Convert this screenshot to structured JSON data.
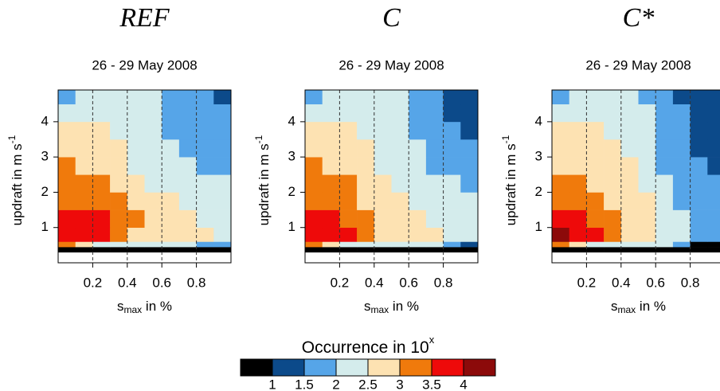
{
  "chart_data": [
    {
      "type": "heatmap",
      "title": "REF",
      "subtitle": "26 - 29 May 2008",
      "xlabel": "s",
      "xlabel_sub": "max",
      "xlabel_rest": " in %",
      "ylabel": "updraft in m s",
      "ylabel_sup": "-1",
      "xlim": [
        0,
        1
      ],
      "ylim": [
        0,
        4.9
      ],
      "xticks": [
        0.2,
        0.4,
        0.6,
        0.8
      ],
      "yticks": [
        1,
        2,
        3,
        4
      ],
      "grid": true,
      "xbins": [
        0,
        0.1,
        0.2,
        0.3,
        0.4,
        0.5,
        0.6,
        0.7,
        0.8,
        0.9,
        1.0
      ],
      "ybins": [
        0,
        0.3,
        0.45,
        0.6,
        1,
        1.5,
        2,
        2.5,
        3,
        3.5,
        4,
        4.5,
        4.9
      ],
      "z": [
        [
          null,
          null,
          null,
          null,
          null,
          null,
          null,
          null,
          null,
          null
        ],
        [
          0.5,
          0.5,
          0.5,
          0.5,
          0.5,
          0.5,
          0.5,
          0.5,
          0.5,
          0.5
        ],
        [
          3.2,
          2.7,
          2.2,
          2.2,
          2.2,
          2.2,
          2.2,
          2.2,
          1.7,
          1.7
        ],
        [
          3.7,
          3.7,
          3.7,
          3.2,
          2.7,
          2.7,
          2.7,
          2.7,
          2.7,
          2.2
        ],
        [
          3.7,
          3.7,
          3.7,
          3.2,
          3.2,
          2.7,
          2.7,
          2.7,
          2.2,
          2.2
        ],
        [
          3.2,
          3.2,
          3.2,
          3.2,
          2.7,
          2.7,
          2.7,
          2.2,
          2.2,
          2.2
        ],
        [
          3.2,
          3.2,
          3.2,
          2.7,
          2.7,
          2.2,
          2.2,
          2.2,
          2.2,
          2.2
        ],
        [
          3.2,
          2.7,
          2.7,
          2.7,
          2.2,
          2.2,
          2.2,
          2.2,
          1.7,
          1.7
        ],
        [
          2.7,
          2.7,
          2.7,
          2.7,
          2.2,
          2.2,
          2.2,
          1.7,
          1.7,
          1.7
        ],
        [
          2.7,
          2.7,
          2.7,
          2.2,
          2.2,
          2.2,
          1.7,
          1.7,
          1.7,
          1.7
        ],
        [
          2.2,
          2.2,
          2.2,
          2.2,
          2.2,
          2.2,
          1.7,
          1.7,
          1.7,
          1.7
        ],
        [
          1.7,
          2.2,
          2.2,
          2.2,
          2.2,
          2.2,
          1.7,
          1.7,
          1.7,
          1.2
        ]
      ]
    },
    {
      "type": "heatmap",
      "title": "C",
      "subtitle": "26 - 29 May 2008",
      "xlabel": "s",
      "xlabel_sub": "max",
      "xlabel_rest": " in %",
      "ylabel": "updraft in m s",
      "ylabel_sup": "-1",
      "xlim": [
        0,
        1
      ],
      "ylim": [
        0,
        4.9
      ],
      "xticks": [
        0.2,
        0.4,
        0.6,
        0.8
      ],
      "yticks": [
        1,
        2,
        3,
        4
      ],
      "grid": true,
      "xbins": [
        0,
        0.1,
        0.2,
        0.3,
        0.4,
        0.5,
        0.6,
        0.7,
        0.8,
        0.9,
        1.0
      ],
      "ybins": [
        0,
        0.3,
        0.45,
        0.6,
        1,
        1.5,
        2,
        2.5,
        3,
        3.5,
        4,
        4.5,
        4.9
      ],
      "z": [
        [
          null,
          null,
          null,
          null,
          null,
          null,
          null,
          null,
          null,
          null
        ],
        [
          0.5,
          0.5,
          0.5,
          0.5,
          0.5,
          0.5,
          0.5,
          0.5,
          0.5,
          0.5
        ],
        [
          3.2,
          2.7,
          2.2,
          2.2,
          2.2,
          2.2,
          2.2,
          2.2,
          1.7,
          1.2
        ],
        [
          3.7,
          3.7,
          3.7,
          3.2,
          2.7,
          2.7,
          2.7,
          2.7,
          2.2,
          2.2
        ],
        [
          3.7,
          3.7,
          3.2,
          3.2,
          2.7,
          2.7,
          2.7,
          2.2,
          2.2,
          2.2
        ],
        [
          3.2,
          3.2,
          3.2,
          2.7,
          2.7,
          2.7,
          2.2,
          2.2,
          2.2,
          2.2
        ],
        [
          3.2,
          3.2,
          3.2,
          2.7,
          2.7,
          2.2,
          2.2,
          2.2,
          2.2,
          1.7
        ],
        [
          3.2,
          2.7,
          2.7,
          2.7,
          2.2,
          2.2,
          2.2,
          1.7,
          1.7,
          1.7
        ],
        [
          2.7,
          2.7,
          2.7,
          2.7,
          2.2,
          2.2,
          2.2,
          1.7,
          1.7,
          1.7
        ],
        [
          2.7,
          2.7,
          2.7,
          2.2,
          2.2,
          2.2,
          1.7,
          1.7,
          1.7,
          1.2
        ],
        [
          2.2,
          2.2,
          2.2,
          2.2,
          2.2,
          2.2,
          1.7,
          1.7,
          1.2,
          1.2
        ],
        [
          1.7,
          2.2,
          2.2,
          2.2,
          2.2,
          2.2,
          1.7,
          1.7,
          1.2,
          1.2
        ]
      ]
    },
    {
      "type": "heatmap",
      "title": "C*",
      "subtitle": "26 - 29 May 2008",
      "xlabel": "s",
      "xlabel_sub": "max",
      "xlabel_rest": " in %",
      "ylabel": "updraft in m s",
      "ylabel_sup": "-1",
      "xlim": [
        0,
        1
      ],
      "ylim": [
        0,
        4.9
      ],
      "xticks": [
        0.2,
        0.4,
        0.6,
        0.8
      ],
      "yticks": [
        1,
        2,
        3,
        4
      ],
      "grid": true,
      "xbins": [
        0,
        0.1,
        0.2,
        0.3,
        0.4,
        0.5,
        0.6,
        0.7,
        0.8,
        0.9,
        1.0
      ],
      "ybins": [
        0,
        0.3,
        0.45,
        0.6,
        1,
        1.5,
        2,
        2.5,
        3,
        3.5,
        4,
        4.5,
        4.9
      ],
      "z": [
        [
          null,
          null,
          null,
          null,
          null,
          null,
          null,
          null,
          null,
          null
        ],
        [
          0.5,
          0.5,
          0.5,
          0.5,
          0.5,
          0.5,
          0.5,
          0.5,
          0.5,
          0.5
        ],
        [
          3.2,
          2.7,
          2.2,
          2.2,
          2.2,
          2.2,
          2.2,
          1.7,
          0.5,
          0.5
        ],
        [
          4.2,
          3.7,
          3.7,
          3.2,
          2.7,
          2.7,
          2.2,
          2.2,
          1.7,
          1.7
        ],
        [
          3.7,
          3.7,
          3.2,
          3.2,
          2.7,
          2.7,
          2.2,
          2.2,
          1.7,
          1.7
        ],
        [
          3.2,
          3.2,
          3.2,
          2.7,
          2.7,
          2.7,
          2.2,
          1.7,
          1.7,
          1.7
        ],
        [
          3.2,
          3.2,
          2.7,
          2.7,
          2.7,
          2.2,
          2.2,
          1.7,
          1.7,
          1.7
        ],
        [
          2.7,
          2.7,
          2.7,
          2.7,
          2.7,
          2.2,
          1.7,
          1.7,
          1.7,
          1.2
        ],
        [
          2.7,
          2.7,
          2.7,
          2.7,
          2.2,
          2.2,
          1.7,
          1.7,
          1.2,
          1.2
        ],
        [
          2.7,
          2.7,
          2.7,
          2.2,
          2.2,
          2.2,
          1.7,
          1.7,
          1.2,
          1.2
        ],
        [
          2.2,
          2.2,
          2.2,
          2.2,
          2.2,
          2.2,
          1.7,
          1.7,
          1.2,
          1.2
        ],
        [
          1.7,
          2.2,
          2.2,
          2.2,
          2.2,
          1.7,
          1.7,
          1.2,
          1.2,
          1.2
        ]
      ]
    }
  ],
  "colorbar": {
    "title": "Occurrence in 10",
    "title_sup": "x",
    "colors": [
      "#000000",
      "#0c4a8a",
      "#56a5e8",
      "#d4ecec",
      "#fde2b2",
      "#f07a0c",
      "#ee0a0a",
      "#8c0a0a"
    ],
    "ticks": [
      1,
      1.5,
      2,
      2.5,
      3,
      3.5,
      4
    ]
  }
}
